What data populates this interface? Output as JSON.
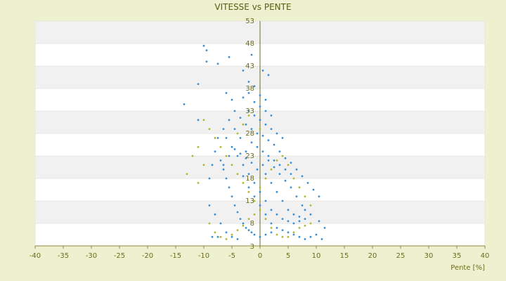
{
  "chart_data": {
    "type": "scatter",
    "title": "VITESSE vs PENTE",
    "xlabel": "Pente [%]",
    "ylabel": "",
    "xlim": [
      -40,
      40
    ],
    "ylim": [
      3,
      53
    ],
    "x_ticks": [
      -40,
      -35,
      -30,
      -25,
      -20,
      -15,
      -10,
      -5,
      0,
      5,
      10,
      15,
      20,
      25,
      30,
      35,
      40
    ],
    "y_ticks": [
      3,
      8,
      13,
      18,
      23,
      28,
      33,
      38,
      43,
      48,
      53
    ],
    "grid": "horizontal-bands",
    "legend": "none",
    "series": [
      {
        "color": "#3a8fd6",
        "points": [
          [
            -10,
            47.5
          ],
          [
            -9.5,
            46.5
          ],
          [
            -9.5,
            44
          ],
          [
            -7.5,
            43.5
          ],
          [
            -5.5,
            45
          ],
          [
            -1.5,
            45.5
          ],
          [
            -3,
            42
          ],
          [
            0.5,
            42
          ],
          [
            1.5,
            41
          ],
          [
            -11,
            39
          ],
          [
            -2,
            39.5
          ],
          [
            -1,
            38.5
          ],
          [
            -13.5,
            34.5
          ],
          [
            -11,
            31
          ],
          [
            -6,
            37
          ],
          [
            -5,
            35.5
          ],
          [
            -4.5,
            33
          ],
          [
            -3.5,
            31.5
          ],
          [
            -2.5,
            30
          ],
          [
            -1.5,
            29
          ],
          [
            -0.5,
            28
          ],
          [
            0.5,
            27.5
          ],
          [
            1.5,
            26.5
          ],
          [
            2.5,
            25.5
          ],
          [
            3.5,
            24
          ],
          [
            4.5,
            22.5
          ],
          [
            5.5,
            21.5
          ],
          [
            6.5,
            20
          ],
          [
            7.5,
            18.5
          ],
          [
            8.5,
            17
          ],
          [
            9.5,
            15.5
          ],
          [
            10.5,
            14
          ],
          [
            -6,
            27
          ],
          [
            -5,
            25
          ],
          [
            -4,
            23
          ],
          [
            -3,
            21
          ],
          [
            -2,
            19
          ],
          [
            -1,
            17
          ],
          [
            0,
            15
          ],
          [
            1,
            13
          ],
          [
            2,
            11
          ],
          [
            3,
            10
          ],
          [
            4,
            9
          ],
          [
            5,
            8.5
          ],
          [
            6,
            8
          ],
          [
            7,
            8.5
          ],
          [
            8,
            9
          ],
          [
            9,
            10
          ],
          [
            -7,
            22
          ],
          [
            -6.5,
            20
          ],
          [
            -6,
            18
          ],
          [
            -5.5,
            16
          ],
          [
            -5,
            14
          ],
          [
            -4.5,
            12
          ],
          [
            -4,
            10.5
          ],
          [
            -3.5,
            9
          ],
          [
            -3,
            8
          ],
          [
            -2.5,
            7
          ],
          [
            -2,
            6.5
          ],
          [
            -1.5,
            6
          ],
          [
            -1,
            5.5
          ],
          [
            0,
            5
          ],
          [
            1,
            5.5
          ],
          [
            2,
            6
          ],
          [
            -2,
            33
          ],
          [
            -1,
            32
          ],
          [
            0,
            31
          ],
          [
            1,
            30
          ],
          [
            2,
            29
          ],
          [
            3,
            28
          ],
          [
            4,
            27
          ],
          [
            -1.5,
            26
          ],
          [
            -0.5,
            25
          ],
          [
            0.5,
            24
          ],
          [
            1.5,
            23
          ],
          [
            2.5,
            22
          ],
          [
            3.5,
            21
          ],
          [
            4.5,
            20
          ],
          [
            5.5,
            19
          ],
          [
            -2.5,
            24
          ],
          [
            -3.5,
            27
          ],
          [
            -4.5,
            29
          ],
          [
            -5.5,
            31
          ],
          [
            -6.5,
            29
          ],
          [
            -7.5,
            27
          ],
          [
            -8,
            24
          ],
          [
            -8.5,
            21
          ],
          [
            -9,
            18
          ],
          [
            -3,
            18.5
          ],
          [
            -2,
            16
          ],
          [
            -1,
            14
          ],
          [
            0,
            12
          ],
          [
            1,
            10
          ],
          [
            2,
            8
          ],
          [
            3,
            7
          ],
          [
            4,
            6.5
          ],
          [
            5,
            6
          ],
          [
            6,
            5.5
          ],
          [
            7,
            5
          ],
          [
            8,
            4.5
          ],
          [
            9,
            5
          ],
          [
            10,
            5.5
          ],
          [
            11,
            4.5
          ],
          [
            11.5,
            7
          ],
          [
            10.5,
            8.5
          ],
          [
            7.5,
            12
          ],
          [
            6.5,
            14
          ],
          [
            5.5,
            16
          ],
          [
            4.5,
            17.5
          ],
          [
            3.5,
            19
          ],
          [
            2.5,
            20.5
          ],
          [
            1.5,
            22
          ],
          [
            0.5,
            21
          ],
          [
            -0.5,
            20
          ],
          [
            -1.5,
            21.5
          ],
          [
            -2.5,
            22.5
          ],
          [
            -3.5,
            23.5
          ],
          [
            -4.5,
            24.5
          ],
          [
            -5.5,
            23
          ],
          [
            -6.5,
            21
          ],
          [
            -1,
            35
          ],
          [
            0,
            34
          ],
          [
            1,
            33
          ],
          [
            2,
            32
          ],
          [
            -3,
            36
          ],
          [
            -2,
            37
          ],
          [
            0,
            36.5
          ],
          [
            1,
            35.5
          ],
          [
            -9,
            12
          ],
          [
            -8,
            10
          ],
          [
            -7,
            8
          ],
          [
            -6,
            6
          ],
          [
            -5,
            5
          ],
          [
            -4,
            4.5
          ],
          [
            -8.5,
            5
          ],
          [
            -7.5,
            5
          ],
          [
            3,
            15
          ],
          [
            4,
            13
          ],
          [
            5,
            11
          ],
          [
            6,
            10
          ],
          [
            7,
            9.5
          ],
          [
            8,
            11
          ],
          [
            2,
            17
          ],
          [
            1,
            19
          ]
        ]
      },
      {
        "color": "#b5b52a",
        "points": [
          [
            -10,
            31
          ],
          [
            -9,
            29
          ],
          [
            -11,
            25
          ],
          [
            -12,
            23
          ],
          [
            -13,
            19
          ],
          [
            -11,
            17
          ],
          [
            -10,
            21
          ],
          [
            -8,
            27
          ],
          [
            -7,
            25
          ],
          [
            -6,
            23
          ],
          [
            -5,
            21
          ],
          [
            -4,
            19
          ],
          [
            -3,
            17
          ],
          [
            -2,
            15
          ],
          [
            -1,
            13
          ],
          [
            0,
            11
          ],
          [
            1,
            9
          ],
          [
            2,
            7
          ],
          [
            3,
            5.5
          ],
          [
            4,
            5
          ],
          [
            5,
            5
          ],
          [
            6,
            6
          ],
          [
            7,
            7
          ],
          [
            8,
            7.5
          ],
          [
            9,
            8
          ],
          [
            -9,
            8
          ],
          [
            -8,
            6
          ],
          [
            -7,
            5
          ],
          [
            -6,
            4.5
          ],
          [
            -5,
            5.5
          ],
          [
            -4,
            6.5
          ],
          [
            -3,
            7.5
          ],
          [
            -2,
            9
          ],
          [
            -1,
            10
          ],
          [
            0,
            16
          ],
          [
            1,
            18
          ],
          [
            2,
            20
          ],
          [
            3,
            22
          ],
          [
            4,
            23
          ],
          [
            5,
            21
          ],
          [
            6,
            18
          ],
          [
            7,
            16
          ],
          [
            8,
            14
          ],
          [
            9,
            12
          ],
          [
            -4,
            28
          ],
          [
            -3,
            30
          ],
          [
            -2,
            32
          ],
          [
            0,
            29
          ]
        ]
      }
    ]
  }
}
